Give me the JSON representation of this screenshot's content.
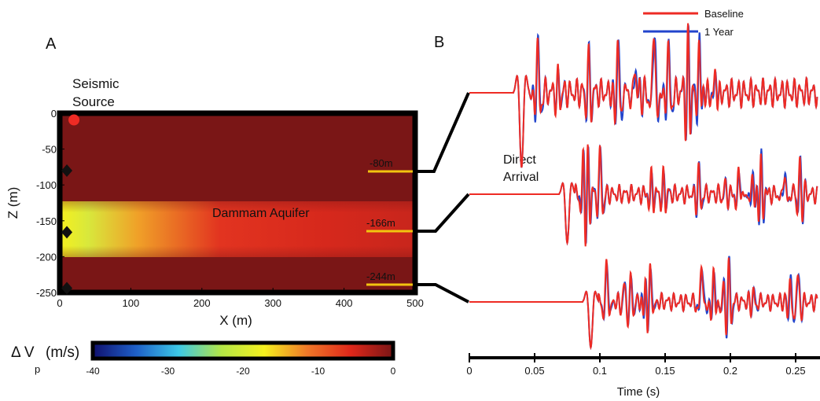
{
  "panel_a": {
    "label": "A",
    "source_label": [
      "Seismic",
      "Source"
    ],
    "aquifer_label": "Dammam Aquifer",
    "receiver_labels": [
      "-80m",
      "-166m",
      "-244m"
    ],
    "colors": {
      "background": "#7a1616",
      "aquifer_hot": "#e0281a",
      "aquifer_edge": "#f5f01e",
      "marker": "#f2c40f",
      "source": "#ee2b24"
    }
  },
  "colorbar": {
    "label": "Δ V",
    "label_sub": "p",
    "unit": "(m/s)",
    "ticks": [
      "-40",
      "-30",
      "-20",
      "-10",
      "0"
    ],
    "colormap": [
      "#10106e",
      "#1e5fc8",
      "#3cc8e6",
      "#b4e646",
      "#f5f01e",
      "#f07828",
      "#e0281a",
      "#7a1616"
    ]
  },
  "panel_b": {
    "label": "B",
    "direct_arrival_label": [
      "Direct",
      "Arrival"
    ],
    "legend": [
      {
        "name": "Baseline",
        "color": "#ee2b24"
      },
      {
        "name": "1 Year",
        "color": "#2244cc"
      }
    ]
  },
  "chart_data": [
    {
      "type": "heatmap",
      "title": "",
      "xlabel": "X (m)",
      "ylabel": "Z (m)",
      "xlim": [
        0,
        500
      ],
      "ylim": [
        -250,
        0
      ],
      "xticks": [
        "0",
        "100",
        "200",
        "300",
        "400",
        "500"
      ],
      "yticks": [
        "0",
        "-50",
        "-100",
        "-150",
        "-200",
        "-250"
      ],
      "colorbar_range": [
        -40,
        0
      ],
      "layers": [
        {
          "name": "overburden",
          "z_top": 0,
          "z_bottom": -123,
          "delta_vp": 0
        },
        {
          "name": "Dammam Aquifer",
          "z_top": -123,
          "z_bottom": -200,
          "delta_vp_near_source": -22,
          "delta_vp_far": -7
        },
        {
          "name": "underburden",
          "z_top": -200,
          "z_bottom": -250,
          "delta_vp": 0
        }
      ],
      "source": {
        "x": 20,
        "z": -5
      },
      "receivers": [
        {
          "x": 10,
          "z": -80
        },
        {
          "x": 10,
          "z": -166
        },
        {
          "x": 10,
          "z": -244
        }
      ]
    },
    {
      "type": "line",
      "title": "",
      "xlabel": "Time (s)",
      "ylabel": "",
      "xlim": [
        0,
        0.265
      ],
      "xticks": [
        "0",
        "0.05",
        "0.1",
        "0.15",
        "0.2",
        "0.25"
      ],
      "series_names": [
        "Baseline",
        "1 Year"
      ],
      "traces": [
        {
          "receiver": "-80m",
          "first_arrival_s": 0.04
        },
        {
          "receiver": "-166m",
          "first_arrival_s": 0.075
        },
        {
          "receiver": "-244m",
          "first_arrival_s": 0.093
        }
      ]
    }
  ]
}
